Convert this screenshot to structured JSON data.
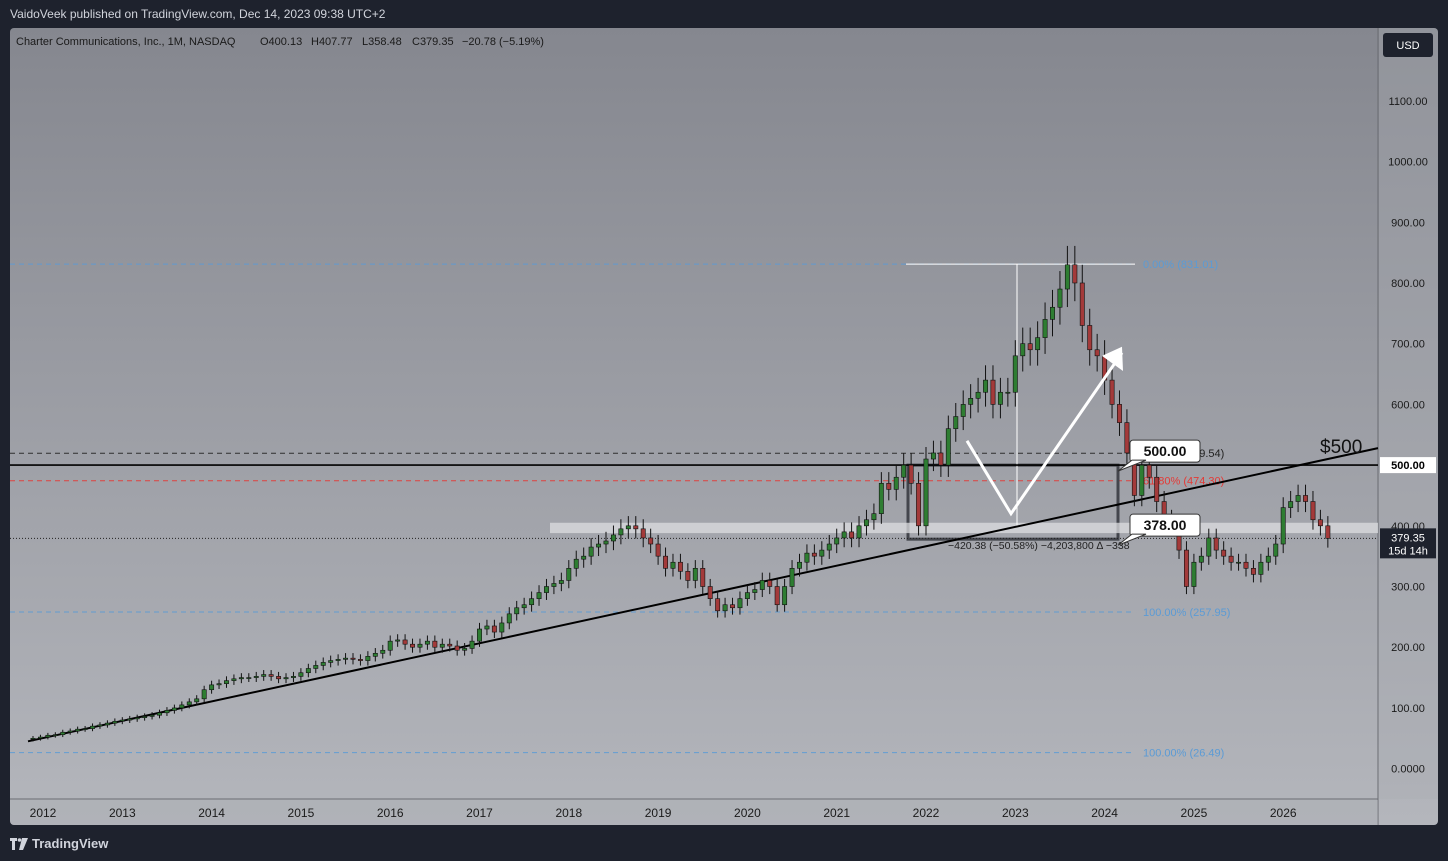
{
  "header": {
    "publisher_line": "VaidoVeek published on TradingView.com, Dec 14, 2023 09:38 UTC+2"
  },
  "footer": {
    "brand": "TradingView"
  },
  "colors": {
    "up": "#26a69a",
    "down": "#a33a3a",
    "fib_blue": "#5b9bd5",
    "fib_red": "#e53935",
    "line": "#000000",
    "bg_top": "#85878f",
    "bg_bottom": "#b4b6bc",
    "axis_bg": "#a9abb1"
  },
  "chart_data": {
    "type": "candlestick",
    "symbol_info": {
      "name": "Charter Communications, Inc., 1M, NASDAQ",
      "open": "O400.13",
      "high": "H407.77",
      "low": "L358.48",
      "close": "C379.35",
      "change": "−20.78 (−5.19%)"
    },
    "currency_label": "USD",
    "ylim": [
      -50,
      1220
    ],
    "y_ticks": [
      {
        "value": 0,
        "label": "0.0000"
      },
      {
        "value": 100,
        "label": "100.00"
      },
      {
        "value": 200,
        "label": "200.00"
      },
      {
        "value": 300,
        "label": "300.00"
      },
      {
        "value": 400,
        "label": "400.00"
      },
      {
        "value": 600,
        "label": "600.00"
      },
      {
        "value": 700,
        "label": "700.00"
      },
      {
        "value": 800,
        "label": "800.00"
      },
      {
        "value": 900,
        "label": "900.00"
      },
      {
        "value": 1000,
        "label": "1000.00"
      },
      {
        "value": 1100,
        "label": "1100.00"
      }
    ],
    "x_ticks": [
      "2012",
      "2013",
      "2014",
      "2015",
      "2016",
      "2017",
      "2018",
      "2019",
      "2020",
      "2021",
      "2022",
      "2023",
      "2024",
      "2025",
      "2026"
    ],
    "start_year": 2012,
    "candles_close": [
      50,
      52,
      55,
      56,
      60,
      62,
      65,
      66,
      70,
      72,
      75,
      78,
      80,
      82,
      84,
      86,
      88,
      92,
      96,
      100,
      105,
      110,
      115,
      130,
      138,
      140,
      145,
      148,
      150,
      150,
      152,
      155,
      152,
      148,
      150,
      152,
      158,
      165,
      170,
      175,
      178,
      180,
      182,
      180,
      178,
      185,
      190,
      195,
      210,
      212,
      205,
      200,
      205,
      210,
      200,
      205,
      202,
      195,
      198,
      210,
      230,
      235,
      225,
      240,
      255,
      265,
      270,
      280,
      290,
      300,
      305,
      310,
      330,
      345,
      350,
      365,
      370,
      375,
      385,
      395,
      400,
      395,
      380,
      370,
      350,
      330,
      340,
      325,
      310,
      330,
      300,
      280,
      260,
      270,
      265,
      280,
      290,
      295,
      310,
      300,
      270,
      300,
      330,
      340,
      355,
      350,
      360,
      370,
      380,
      390,
      380,
      400,
      410,
      420,
      470,
      460,
      480,
      500,
      470,
      400,
      510,
      520,
      500,
      560,
      580,
      600,
      610,
      620,
      640,
      600,
      620,
      620,
      680,
      700,
      690,
      710,
      740,
      760,
      790,
      830,
      800,
      730,
      690,
      680,
      640,
      600,
      570,
      520,
      450,
      500,
      480,
      440,
      410,
      400,
      360,
      300,
      340,
      350,
      380,
      360,
      350,
      340,
      340,
      330,
      320,
      340,
      350,
      370,
      430,
      440,
      450,
      440,
      410,
      400,
      379.35
    ],
    "current_price_label": "379.35",
    "countdown_label": "15d 14h",
    "fib_levels": [
      {
        "label": "0.00% (831.01)",
        "value": 831.01,
        "color": "blue"
      },
      {
        "label": "38.20% (519.54)",
        "value": 519.54,
        "color": "dark"
      },
      {
        "label": "61.80% (474.30)",
        "value": 474.3,
        "color": "red"
      },
      {
        "label": "100.00% (257.95)",
        "value": 257.95,
        "color": "blue"
      },
      {
        "label": "100.00% (26.49)",
        "value": 26.49,
        "color": "blue"
      }
    ],
    "horizontal_line": {
      "value": 500,
      "label": "500.00"
    },
    "box_labels": [
      {
        "text": "500.00",
        "value": 500
      },
      {
        "text": "378.00",
        "value": 378
      }
    ],
    "range_label": "−420.38 (−50.58%) −4,203,800 ∆ −338",
    "annotation": "$500"
  }
}
